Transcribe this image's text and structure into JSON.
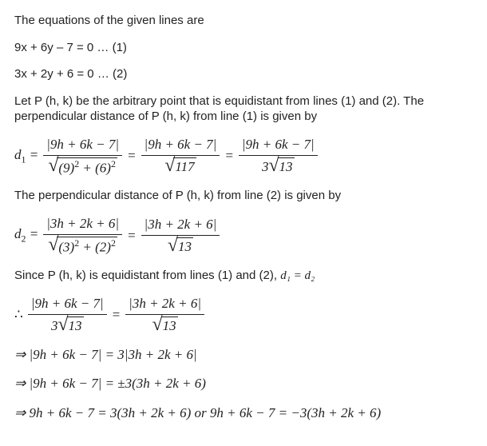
{
  "p1": "The equations of the given lines are",
  "eq1": "9x + 6y – 7 = 0 … (1)",
  "eq2": "3x + 2y + 6 = 0 … (2)",
  "p2": "Let P (h, k) be the arbitrary point that is equidistant from lines (1) and (2). The perpendicular distance of P (h, k) from line (1) is given by",
  "d1": {
    "lhs": "d",
    "sub": "1",
    "frac1_num": "|9h + 6k − 7|",
    "frac1_den_base": "(9)",
    "frac1_den_exp": "2",
    "frac1_den_plus": " + (6)",
    "frac1_den_exp2": "2",
    "frac2_num": "|9h + 6k − 7|",
    "frac2_den": "117",
    "frac3_num": "|9h + 6k − 7|",
    "frac3_den_coef": "3",
    "frac3_den_rad": "13"
  },
  "p3": "The perpendicular distance of P (h, k) from line (2) is given by",
  "d2": {
    "lhs": "d",
    "sub": "2",
    "frac1_num": "|3h + 2k + 6|",
    "frac1_den_base": "(3)",
    "frac1_den_exp": "2",
    "frac1_den_plus": " + (2)",
    "frac1_den_exp2": "2",
    "frac2_num": "|3h + 2k + 6|",
    "frac2_den": "13"
  },
  "p4_a": "Since P (h, k) is equidistant from lines (1) and (2), ",
  "p4_math": "d₁ = d₂",
  "final": {
    "therefore": "∴",
    "frac1_num": "|9h + 6k − 7|",
    "frac1_den_coef": "3",
    "frac1_den_rad": "13",
    "frac2_num": "|3h + 2k + 6|",
    "frac2_den_rad": "13",
    "line2": "⇒ |9h + 6k − 7| = 3|3h + 2k + 6|",
    "line3": "⇒ |9h + 6k − 7| = ±3(3h + 2k + 6)",
    "line4": "⇒ 9h + 6k − 7 = 3(3h + 2k + 6)  or  9h + 6k − 7 = −3(3h + 2k + 6)"
  }
}
